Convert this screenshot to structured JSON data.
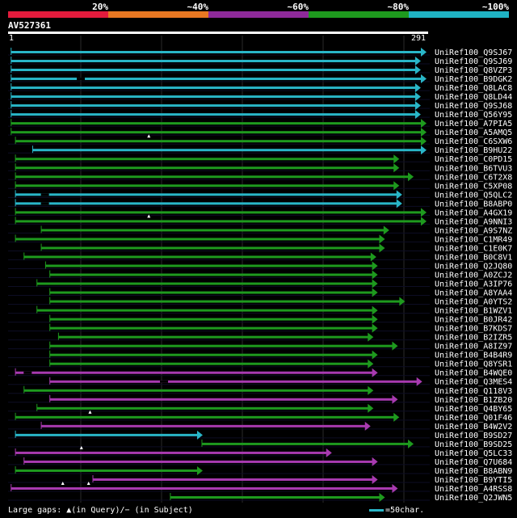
{
  "legend": {
    "labels": [
      "20%",
      "~40%",
      "~60%",
      "~80%",
      "~100%"
    ],
    "colors": [
      "#e21b3c",
      "#e87722",
      "#8e2a9a",
      "#1e9a1e",
      "#1fb3c4"
    ]
  },
  "query": {
    "id": "AV527361",
    "start": "1",
    "end": "291",
    "length": 291
  },
  "footer": {
    "gaps_text": "Large gaps: ▲(in Query)/− (in Subject)",
    "scale_text": "=50char."
  },
  "hits": [
    {
      "name": "UniRef100_Q9SJ67",
      "start": 2,
      "end": 291,
      "color": "#29b6c8",
      "marks": []
    },
    {
      "name": "UniRef100_Q9SJ69",
      "start": 2,
      "end": 287,
      "color": "#29b6c8",
      "marks": []
    },
    {
      "name": "UniRef100_Q8VZP3",
      "start": 2,
      "end": 287,
      "color": "#29b6c8",
      "marks": []
    },
    {
      "name": "UniRef100_B9DGK2",
      "start": 2,
      "end": 291,
      "color": "#29b6c8",
      "marks": [
        {
          "t": "s",
          "at": 50
        }
      ]
    },
    {
      "name": "UniRef100_Q8LAC8",
      "start": 2,
      "end": 287,
      "color": "#29b6c8",
      "marks": []
    },
    {
      "name": "UniRef100_Q8LD44",
      "start": 2,
      "end": 287,
      "color": "#29b6c8",
      "marks": []
    },
    {
      "name": "UniRef100_Q9SJ68",
      "start": 2,
      "end": 287,
      "color": "#29b6c8",
      "marks": []
    },
    {
      "name": "UniRef100_Q56Y95",
      "start": 2,
      "end": 287,
      "color": "#29b6c8",
      "marks": []
    },
    {
      "name": "UniRef100_A7PIA5",
      "start": 2,
      "end": 291,
      "color": "#1e9a1e",
      "marks": []
    },
    {
      "name": "UniRef100_A5AMQ5",
      "start": 2,
      "end": 291,
      "color": "#1e9a1e",
      "marks": []
    },
    {
      "name": "UniRef100_C6SXW6",
      "start": 5,
      "end": 291,
      "color": "#1e9a1e",
      "marks": [
        {
          "t": "q",
          "at": 98
        }
      ]
    },
    {
      "name": "UniRef100_B9HU22",
      "start": 17,
      "end": 291,
      "color": "#29b6c8",
      "marks": []
    },
    {
      "name": "UniRef100_C0PD15",
      "start": 5,
      "end": 272,
      "color": "#1e9a1e",
      "marks": []
    },
    {
      "name": "UniRef100_B6TVU3",
      "start": 5,
      "end": 272,
      "color": "#1e9a1e",
      "marks": []
    },
    {
      "name": "UniRef100_C6T2X8",
      "start": 5,
      "end": 282,
      "color": "#1e9a1e",
      "marks": []
    },
    {
      "name": "UniRef100_C5XP08",
      "start": 5,
      "end": 272,
      "color": "#1e9a1e",
      "marks": []
    },
    {
      "name": "UniRef100_Q5QLC2",
      "start": 5,
      "end": 274,
      "color": "#29b6c8",
      "marks": [
        {
          "t": "s",
          "at": 25
        }
      ]
    },
    {
      "name": "UniRef100_B8ABP0",
      "start": 5,
      "end": 274,
      "color": "#29b6c8",
      "marks": [
        {
          "t": "s",
          "at": 25
        }
      ]
    },
    {
      "name": "UniRef100_A4GX19",
      "start": 5,
      "end": 291,
      "color": "#1e9a1e",
      "marks": []
    },
    {
      "name": "UniRef100_A9NNI3",
      "start": 5,
      "end": 291,
      "color": "#1e9a1e",
      "marks": [
        {
          "t": "q",
          "at": 98
        }
      ]
    },
    {
      "name": "UniRef100_A9S7NZ",
      "start": 23,
      "end": 265,
      "color": "#1e9a1e",
      "marks": []
    },
    {
      "name": "UniRef100_C1MR49",
      "start": 5,
      "end": 262,
      "color": "#1e9a1e",
      "marks": []
    },
    {
      "name": "UniRef100_C1E0K7",
      "start": 23,
      "end": 262,
      "color": "#1e9a1e",
      "marks": []
    },
    {
      "name": "UniRef100_B0C8V1",
      "start": 11,
      "end": 256,
      "color": "#1e9a1e",
      "marks": []
    },
    {
      "name": "UniRef100_Q2JQ80",
      "start": 26,
      "end": 257,
      "color": "#1e9a1e",
      "marks": []
    },
    {
      "name": "UniRef100_A0ZCJ2",
      "start": 29,
      "end": 257,
      "color": "#1e9a1e",
      "marks": []
    },
    {
      "name": "UniRef100_A3IP76",
      "start": 20,
      "end": 257,
      "color": "#1e9a1e",
      "marks": []
    },
    {
      "name": "UniRef100_A8YAA4",
      "start": 29,
      "end": 257,
      "color": "#1e9a1e",
      "marks": []
    },
    {
      "name": "UniRef100_A0YTS2",
      "start": 29,
      "end": 276,
      "color": "#1e9a1e",
      "marks": []
    },
    {
      "name": "UniRef100_B1WZV1",
      "start": 20,
      "end": 257,
      "color": "#1e9a1e",
      "marks": []
    },
    {
      "name": "UniRef100_B0JR42",
      "start": 29,
      "end": 257,
      "color": "#1e9a1e",
      "marks": []
    },
    {
      "name": "UniRef100_B7KDS7",
      "start": 29,
      "end": 257,
      "color": "#1e9a1e",
      "marks": []
    },
    {
      "name": "UniRef100_B2IZR5",
      "start": 35,
      "end": 254,
      "color": "#1e9a1e",
      "marks": []
    },
    {
      "name": "UniRef100_A8IZ97",
      "start": 29,
      "end": 271,
      "color": "#1e9a1e",
      "marks": []
    },
    {
      "name": "UniRef100_B4B4R9",
      "start": 29,
      "end": 257,
      "color": "#1e9a1e",
      "marks": []
    },
    {
      "name": "UniRef100_Q8YSR1",
      "start": 29,
      "end": 254,
      "color": "#1e9a1e",
      "marks": []
    },
    {
      "name": "UniRef100_B4WQE0",
      "start": 5,
      "end": 257,
      "color": "#a83ab0",
      "marks": [
        {
          "t": "s",
          "at": 13
        }
      ]
    },
    {
      "name": "UniRef100_Q3MES4",
      "start": 29,
      "end": 288,
      "color": "#a83ab0",
      "marks": [
        {
          "t": "s",
          "at": 108
        }
      ]
    },
    {
      "name": "UniRef100_Q118V3",
      "start": 11,
      "end": 254,
      "color": "#1e9a1e",
      "marks": []
    },
    {
      "name": "UniRef100_B1ZB20",
      "start": 29,
      "end": 271,
      "color": "#a83ab0",
      "marks": []
    },
    {
      "name": "UniRef100_Q4BY65",
      "start": 20,
      "end": 254,
      "color": "#1e9a1e",
      "marks": []
    },
    {
      "name": "UniRef100_Q01F46",
      "start": 5,
      "end": 272,
      "color": "#1e9a1e",
      "marks": [
        {
          "t": "q",
          "at": 57
        }
      ]
    },
    {
      "name": "UniRef100_B4W2V2",
      "start": 23,
      "end": 252,
      "color": "#a83ab0",
      "marks": []
    },
    {
      "name": "UniRef100_B9SD27",
      "start": 5,
      "end": 135,
      "color": "#29b6c8",
      "marks": []
    },
    {
      "name": "UniRef100_B9SD25",
      "start": 135,
      "end": 282,
      "color": "#1e9a1e",
      "marks": []
    },
    {
      "name": "UniRef100_Q5LC33",
      "start": 5,
      "end": 225,
      "color": "#a83ab0",
      "marks": [
        {
          "t": "q",
          "at": 51
        }
      ]
    },
    {
      "name": "UniRef100_Q7U684",
      "start": 11,
      "end": 257,
      "color": "#a83ab0",
      "marks": []
    },
    {
      "name": "UniRef100_B8ABN9",
      "start": 5,
      "end": 135,
      "color": "#1e9a1e",
      "marks": []
    },
    {
      "name": "UniRef100_B9YTI5",
      "start": 59,
      "end": 257,
      "color": "#a83ab0",
      "marks": []
    },
    {
      "name": "UniRef100_A4RSS8",
      "start": 2,
      "end": 271,
      "color": "#a83ab0",
      "marks": [
        {
          "t": "q",
          "at": 38
        },
        {
          "t": "q",
          "at": 56
        }
      ]
    },
    {
      "name": "UniRef100_Q2JWN5",
      "start": 113,
      "end": 262,
      "color": "#1e9a1e",
      "marks": []
    }
  ]
}
